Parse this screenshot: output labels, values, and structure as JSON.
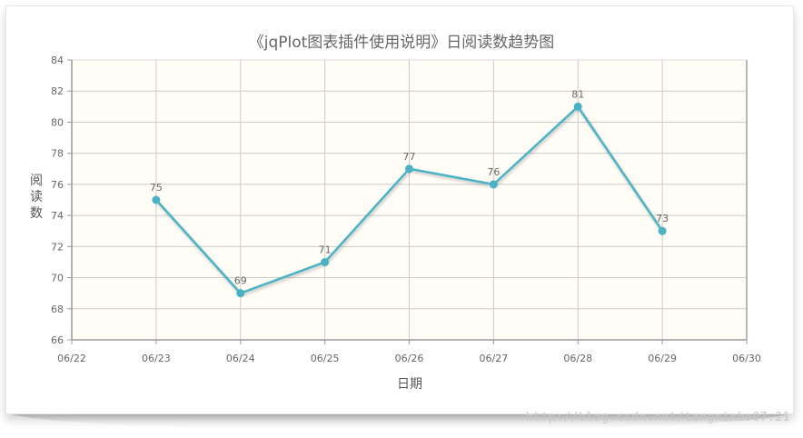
{
  "chart_data": {
    "type": "line",
    "title": "《jqPlot图表插件使用说明》日阅读数趋势图",
    "xlabel": "日期",
    "ylabel": "阅读数",
    "x_ticks": [
      "06/22",
      "06/23",
      "06/24",
      "06/25",
      "06/26",
      "06/27",
      "06/28",
      "06/29",
      "06/30"
    ],
    "y_ticks": [
      66,
      68,
      70,
      72,
      74,
      76,
      78,
      80,
      82,
      84
    ],
    "ylim": [
      66,
      84
    ],
    "grid": true,
    "series": [
      {
        "x": [
          "06/23",
          "06/24",
          "06/25",
          "06/26",
          "06/27",
          "06/28",
          "06/29"
        ],
        "values": [
          75,
          69,
          71,
          77,
          76,
          81,
          73
        ],
        "point_labels": [
          "75",
          "69",
          "71",
          "77",
          "76",
          "81",
          "73"
        ],
        "color": "#4bb2c5"
      }
    ]
  },
  "colors": {
    "plot_background": "#fffdf6",
    "grid": "#cccccc",
    "axis": "#999999",
    "series": "#4bb2c5"
  },
  "watermark": "http://blog.csdn.net/tangminbo07.21"
}
